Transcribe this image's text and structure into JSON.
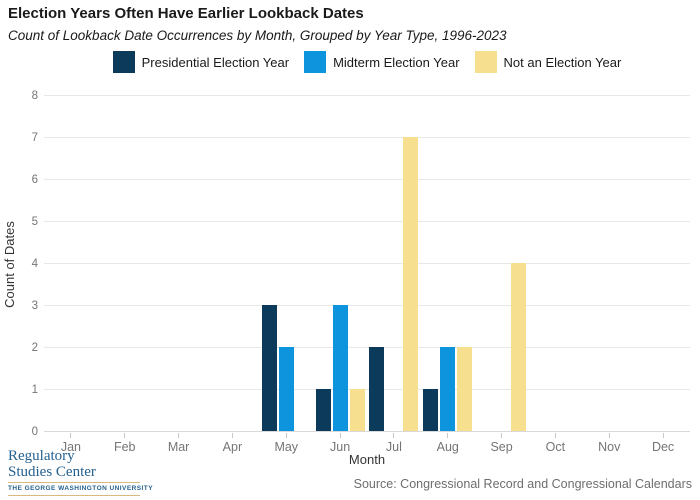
{
  "header": {
    "title": "Election Years Often Have Earlier Lookback Dates",
    "subtitle": "Count of Lookback Date Occurrences by Month, Grouped by Year Type, 1996-2023"
  },
  "chart_data": {
    "type": "bar",
    "grouped": true,
    "categories": [
      "Jan",
      "Feb",
      "Mar",
      "Apr",
      "May",
      "Jun",
      "Jul",
      "Aug",
      "Sep",
      "Oct",
      "Nov",
      "Dec"
    ],
    "series": [
      {
        "name": "Presidential Election Year",
        "color": "#0b3a5a",
        "values": [
          0,
          0,
          0,
          0,
          3,
          1,
          2,
          1,
          0,
          0,
          0,
          0
        ]
      },
      {
        "name": "Midterm Election Year",
        "color": "#0e93dd",
        "values": [
          0,
          0,
          0,
          0,
          2,
          3,
          0,
          2,
          0,
          0,
          0,
          0
        ]
      },
      {
        "name": "Not an Election Year",
        "color": "#f7df90",
        "values": [
          0,
          0,
          0,
          0,
          0,
          1,
          7,
          2,
          4,
          0,
          0,
          0
        ]
      }
    ],
    "xlabel": "Month",
    "ylabel": "Count of Dates",
    "ylim": [
      0,
      8
    ],
    "yticks": [
      0,
      1,
      2,
      3,
      4,
      5,
      6,
      7,
      8
    ],
    "grid": "horizontal",
    "legend_position": "top"
  },
  "footer": {
    "logo": {
      "line1": "Regulatory",
      "line2": "Studies Center",
      "university": "THE GEORGE WASHINGTON UNIVERSITY"
    },
    "source": "Source: Congressional Record and Congressional Calendars"
  },
  "colors": {
    "title_text": "#1a1a1a",
    "tick_label": "#757575",
    "gridline": "#e8e8e8",
    "logo_blue": "#25618f",
    "logo_gold": "#d9b97c",
    "source_text": "#6e6e6e"
  }
}
